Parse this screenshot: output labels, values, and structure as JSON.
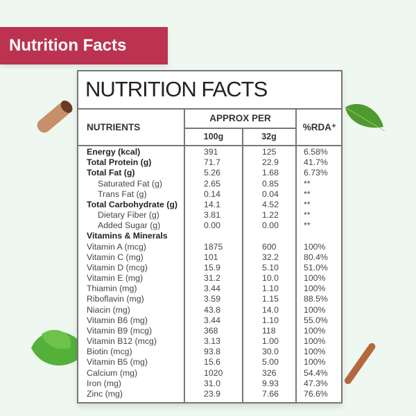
{
  "banner": "Nutrition Facts",
  "title": "NUTRITION FACTS",
  "headers": {
    "nutrients": "NUTRIENTS",
    "approx_per": "APPROX PER",
    "col_100g": "100g",
    "col_32g": "32g",
    "rda": "%RDA⁺"
  },
  "rows": [
    {
      "name": "Energy (kcal)",
      "v100": "391",
      "v32": "125",
      "rda": "6.58%",
      "style": "bold"
    },
    {
      "name": "Total Protein (g)",
      "v100": "71.7",
      "v32": "22.9",
      "rda": "41.7%",
      "style": "bold"
    },
    {
      "name": "Total Fat (g)",
      "v100": "5.26",
      "v32": "1.68",
      "rda": "6.73%",
      "style": "bold"
    },
    {
      "name": "Saturated Fat (g)",
      "v100": "2.65",
      "v32": "0.85",
      "rda": "**",
      "style": "indent"
    },
    {
      "name": "Trans Fat (g)",
      "v100": "0.14",
      "v32": "0.04",
      "rda": "**",
      "style": "indent"
    },
    {
      "name": "Total Carbohydrate (g)",
      "v100": "14.1",
      "v32": "4.52",
      "rda": "**",
      "style": "bold"
    },
    {
      "name": "Dietary Fiber (g)",
      "v100": "3.81",
      "v32": "1.22",
      "rda": "**",
      "style": "indent"
    },
    {
      "name": "Added Sugar (g)",
      "v100": "0.00",
      "v32": "0.00",
      "rda": "**",
      "style": "indent"
    },
    {
      "name": "Vitamins & Minerals",
      "v100": "",
      "v32": "",
      "rda": "",
      "style": "section"
    },
    {
      "name": "Vitamin A (mcg)",
      "v100": "1875",
      "v32": "600",
      "rda": "100%",
      "style": "normal"
    },
    {
      "name": "Vitamin C (mg)",
      "v100": "101",
      "v32": "32.2",
      "rda": "80.4%",
      "style": "normal"
    },
    {
      "name": "Vitamin D (mcg)",
      "v100": "15.9",
      "v32": "5.10",
      "rda": "51.0%",
      "style": "normal"
    },
    {
      "name": "Vitamin E (mg)",
      "v100": "31.2",
      "v32": "10.0",
      "rda": "100%",
      "style": "normal"
    },
    {
      "name": "Thiamin (mg)",
      "v100": "3.44",
      "v32": "1.10",
      "rda": "100%",
      "style": "normal"
    },
    {
      "name": "Riboflavin (mg)",
      "v100": "3.59",
      "v32": "1.15",
      "rda": "88.5%",
      "style": "normal"
    },
    {
      "name": "Niacin (mg)",
      "v100": "43.8",
      "v32": "14.0",
      "rda": "100%",
      "style": "normal"
    },
    {
      "name": "Vitamin B6 (mg)",
      "v100": "3.44",
      "v32": "1.10",
      "rda": "55.0%",
      "style": "normal"
    },
    {
      "name": "Vitamin B9 (mcg)",
      "v100": "368",
      "v32": "118",
      "rda": "100%",
      "style": "normal"
    },
    {
      "name": "Vitamin B12 (mcg)",
      "v100": "3.13",
      "v32": "1.00",
      "rda": "100%",
      "style": "normal"
    },
    {
      "name": "Biotin (mcg)",
      "v100": "93.8",
      "v32": "30.0",
      "rda": "100%",
      "style": "normal"
    },
    {
      "name": "Vitamin B5 (mg)",
      "v100": "15.6",
      "v32": "5.00",
      "rda": "100%",
      "style": "normal"
    },
    {
      "name": "Calcium (mg)",
      "v100": "1020",
      "v32": "326",
      "rda": "54.4%",
      "style": "normal"
    },
    {
      "name": "Iron (mg)",
      "v100": "31.0",
      "v32": "9.93",
      "rda": "47.3%",
      "style": "normal"
    },
    {
      "name": "Zinc (mg)",
      "v100": "23.9",
      "v32": "7.66",
      "rda": "76.6%",
      "style": "normal"
    }
  ],
  "colors": {
    "banner": "#bb3350",
    "background": "#eef8f1"
  }
}
